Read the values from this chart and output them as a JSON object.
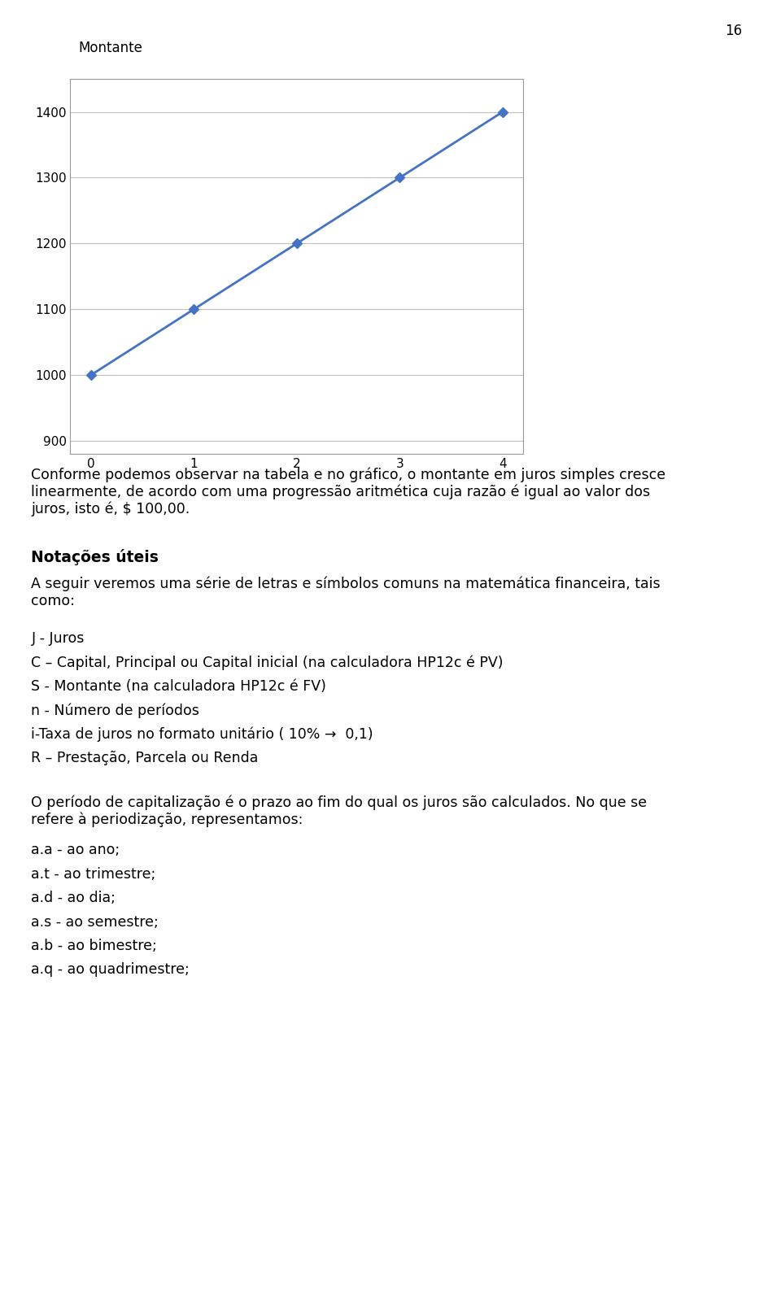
{
  "page_number": "16",
  "chart": {
    "x": [
      0,
      1,
      2,
      3,
      4
    ],
    "y": [
      1000,
      1100,
      1200,
      1300,
      1400
    ],
    "ylabel_text": "Montante",
    "ylim": [
      880,
      1450
    ],
    "yticks": [
      900,
      1000,
      1100,
      1200,
      1300,
      1400
    ],
    "xticks": [
      0,
      1,
      2,
      3,
      4
    ],
    "line_color": "#4472C4",
    "marker": "D",
    "marker_size": 6,
    "line_width": 2.0
  },
  "paragraph1": "Conforme podemos observar na tabela e no gráfico, o montante em juros simples cresce\nlinearmente, de acordo com uma progressão aritmética cuja razão é igual ao valor dos\njuros, isto é, $ 100,00.",
  "section_title": "Notações úteis",
  "paragraph2": "A seguir veremos uma série de letras e símbolos comuns na matemática financeira, tais\ncomo:",
  "items": [
    "J - Juros",
    "C – Capital, Principal ou Capital inicial (na calculadora HP12c é PV)",
    "S - Montante (na calculadora HP12c é FV)",
    "n - Número de períodos",
    "i-Taxa de juros no formato unitário ( 10% →  0,1)",
    "R – Prestação, Parcela ou Renda"
  ],
  "paragraph3": "O período de capitalização é o prazo ao fim do qual os juros são calculados. No que se\nrefere à periodização, representamos:",
  "list_items": [
    "a.a - ao ano;",
    "a.t - ao trimestre;",
    "a.d - ao dia;",
    "a.s - ao semestre;",
    "a.b - ao bimestre;",
    "a.q - ao quadrimestre;"
  ],
  "background_color": "#ffffff",
  "text_color": "#000000",
  "font_size_body": 12.5,
  "font_size_section": 13.5,
  "chart_label_fs": 12,
  "tick_fs": 11
}
